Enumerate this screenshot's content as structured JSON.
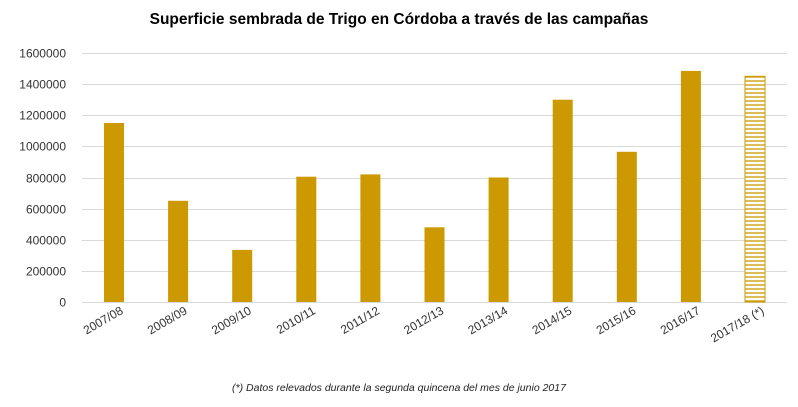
{
  "chart_data": {
    "type": "bar",
    "title": "Superficie sembrada de Trigo en Córdoba a través de las campañas",
    "footnote": "(*) Datos relevados durante la segunda quincena del mes de junio 2017",
    "categories": [
      "2007/08",
      "2008/09",
      "2009/10",
      "2010/11",
      "2011/12",
      "2012/13",
      "2013/14",
      "2014/15",
      "2015/16",
      "2016/17",
      "2017/18 (*)"
    ],
    "values": [
      1150000,
      650000,
      335000,
      805000,
      820000,
      480000,
      800000,
      1300000,
      965000,
      1485000,
      1450000
    ],
    "estimated_flags": [
      false,
      false,
      false,
      false,
      false,
      false,
      false,
      false,
      false,
      false,
      true
    ],
    "ylim": [
      0,
      1600000
    ],
    "yticks": [
      0,
      200000,
      400000,
      600000,
      800000,
      1000000,
      1200000,
      1400000,
      1600000
    ],
    "xlabel": "",
    "ylabel": "",
    "grid": true,
    "legend": "none",
    "bar_color": "#CC9900",
    "grid_color": "#D9D9D9"
  }
}
